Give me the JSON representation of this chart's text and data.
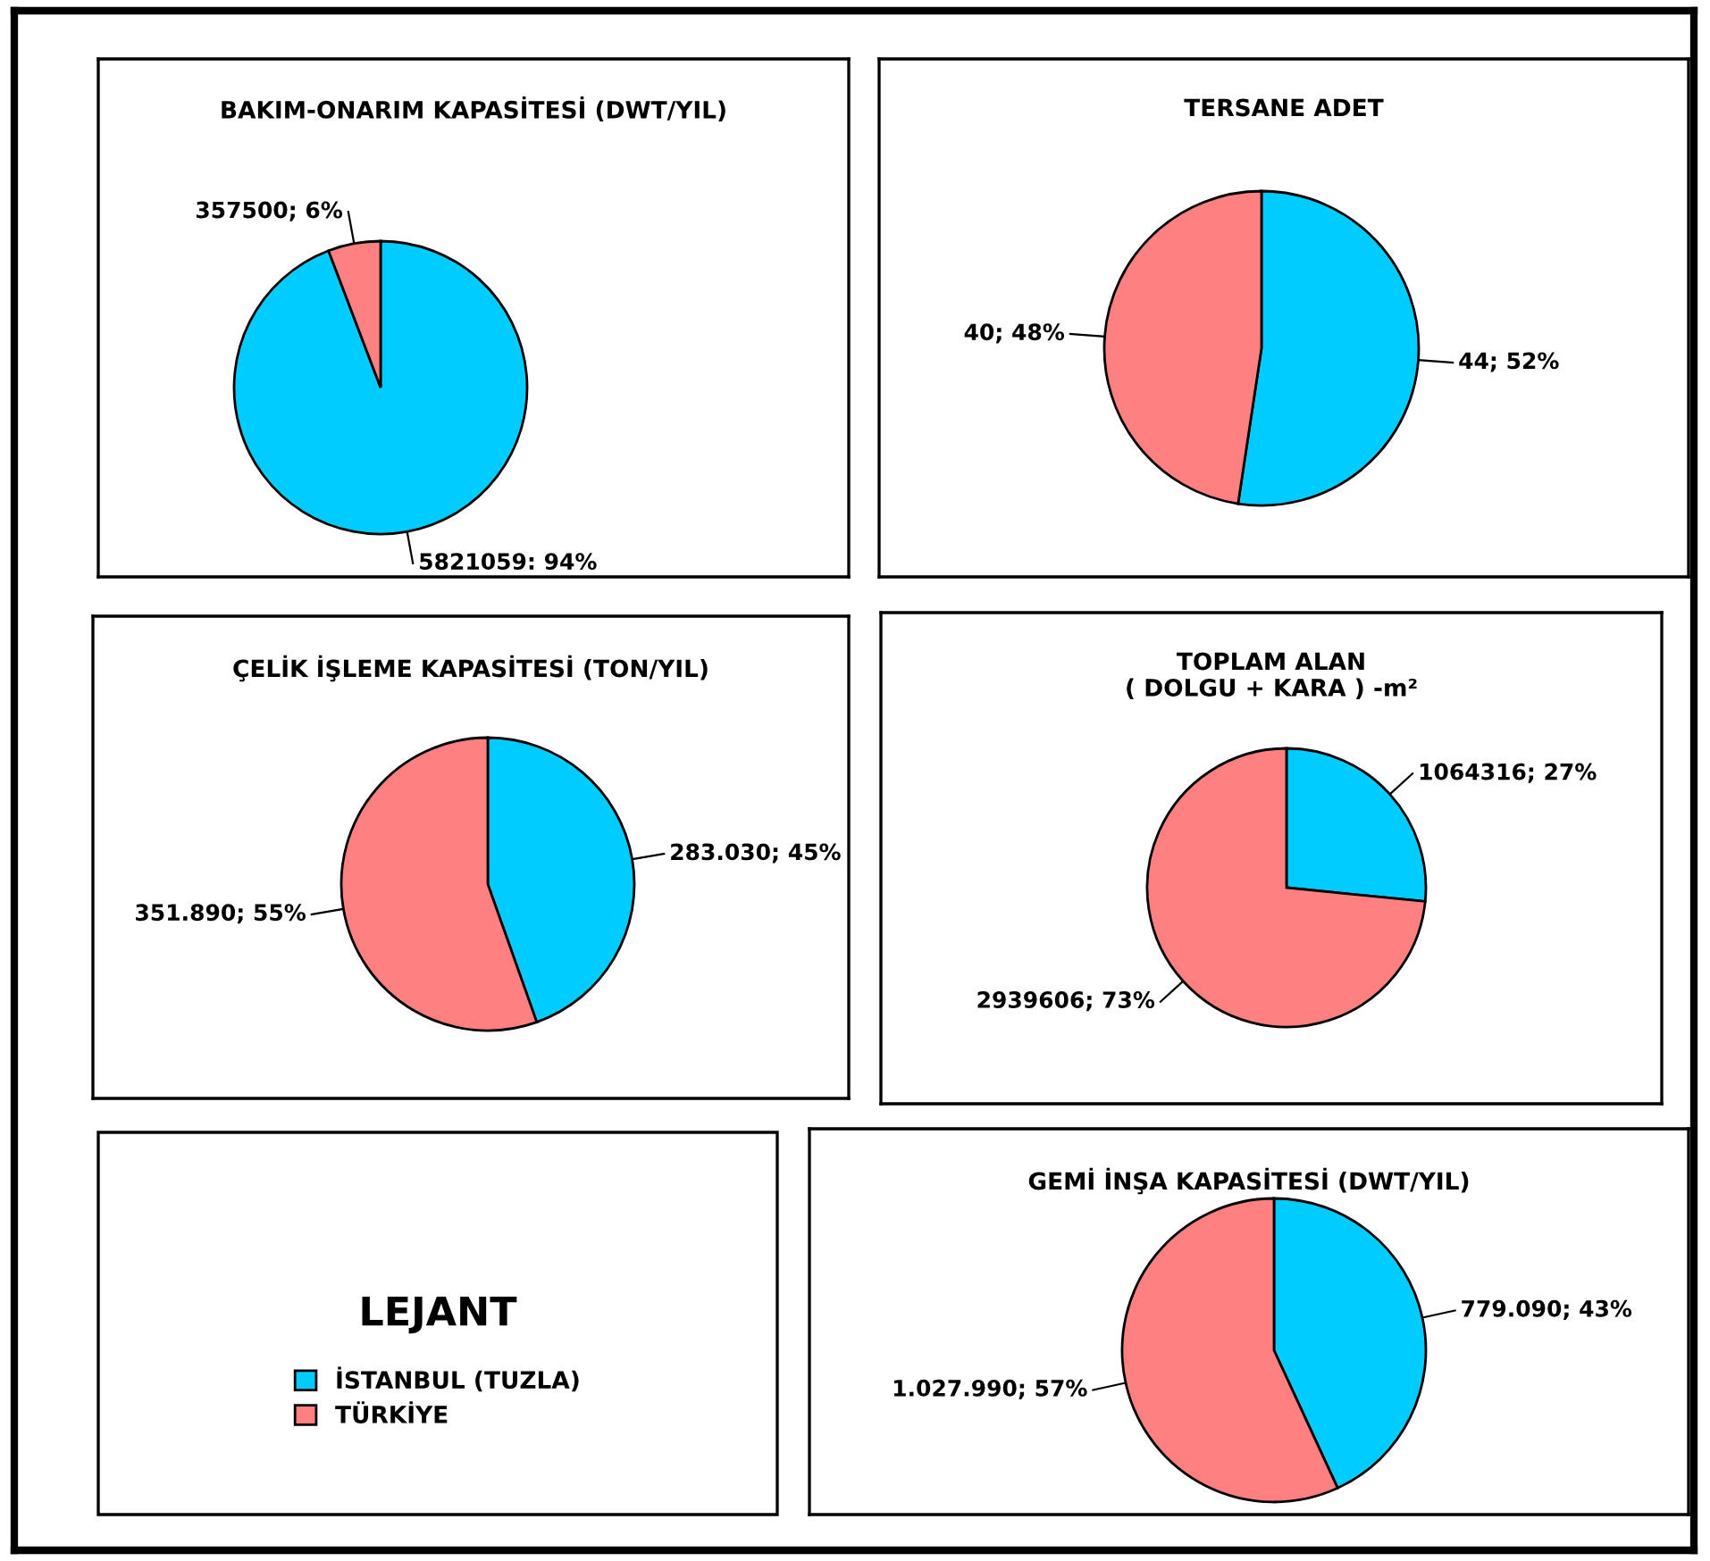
{
  "chart_data": [
    {
      "type": "pie",
      "title": "BAKIM-ONARIM KAPASİTESİ (DWT/YIL)",
      "categories": [
        null,
        null
      ],
      "values": [
        5821059,
        357500
      ],
      "colors": [
        "#00ccff",
        "#ff8080"
      ],
      "value_labels": [
        "5821059: 94%",
        "357500; 6%"
      ]
    },
    {
      "type": "pie",
      "title": "TERSANE ADET",
      "categories": [
        null,
        null
      ],
      "values": [
        44,
        40
      ],
      "colors": [
        "#00ccff",
        "#ff8080"
      ],
      "value_labels": [
        "44; 52%",
        "40; 48%"
      ]
    },
    {
      "type": "pie",
      "title": "ÇELİK İŞLEME KAPASİTESİ (TON/YIL)",
      "categories": [
        null,
        null
      ],
      "values": [
        283030,
        351890
      ],
      "colors": [
        "#00ccff",
        "#ff8080"
      ],
      "value_labels": [
        "283.030; 45%",
        "351.890; 55%"
      ]
    },
    {
      "type": "pie",
      "title": "TOPLAM ALAN\n( DOLGU + KARA ) -m²",
      "categories": [
        null,
        null
      ],
      "values": [
        1064316,
        2939606
      ],
      "colors": [
        "#00ccff",
        "#ff8080"
      ],
      "value_labels": [
        "1064316; 27%",
        "2939606; 73%"
      ]
    },
    {
      "type": "pie",
      "title": "GEMİ İNŞA KAPASİTESİ (DWT/YIL)",
      "categories": [
        "İSTANBUL (TUZLA)",
        "TÜRKİYE"
      ],
      "values": [
        779090,
        1027990
      ],
      "colors": [
        "#00ccff",
        "#ff8080"
      ],
      "value_labels": [
        "779.090; 43%",
        "1.027.990; 57%"
      ],
      "legend": "left",
      "legend_title": "LEJANT"
    }
  ]
}
